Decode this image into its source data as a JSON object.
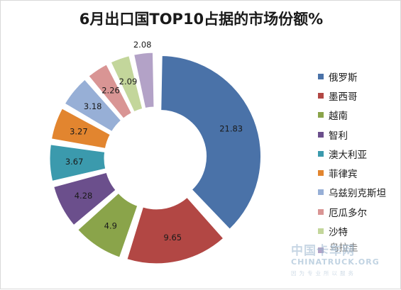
{
  "chart_data": {
    "type": "pie",
    "title": "6月出口国TOP10占据的市场份额%",
    "legend_position": "right",
    "series": [
      {
        "name": "俄罗斯",
        "value": 21.83,
        "color": "#4a72a8"
      },
      {
        "name": "墨西哥",
        "value": 9.65,
        "color": "#b24744"
      },
      {
        "name": "越南",
        "value": 4.9,
        "color": "#8aa44a"
      },
      {
        "name": "智利",
        "value": 4.28,
        "color": "#6b4f8c"
      },
      {
        "name": "澳大利亚",
        "value": 3.67,
        "color": "#3b9aad"
      },
      {
        "name": "菲律宾",
        "value": 3.27,
        "color": "#e2852f"
      },
      {
        "name": "乌兹别克斯坦",
        "value": 3.18,
        "color": "#97afd6"
      },
      {
        "name": "厄瓜多尔",
        "value": 2.26,
        "color": "#d99594"
      },
      {
        "name": "沙特",
        "value": 2.09,
        "color": "#c3d69b"
      },
      {
        "name": "",
        "value": 2.08,
        "color": "#b3a2c7"
      }
    ]
  },
  "watermark": {
    "logo": "中国卡车网",
    "sub": "CHINATRUCK.ORG",
    "slogan": "因为专业所以服务"
  },
  "occluded_legend_text": "乌拉圭"
}
